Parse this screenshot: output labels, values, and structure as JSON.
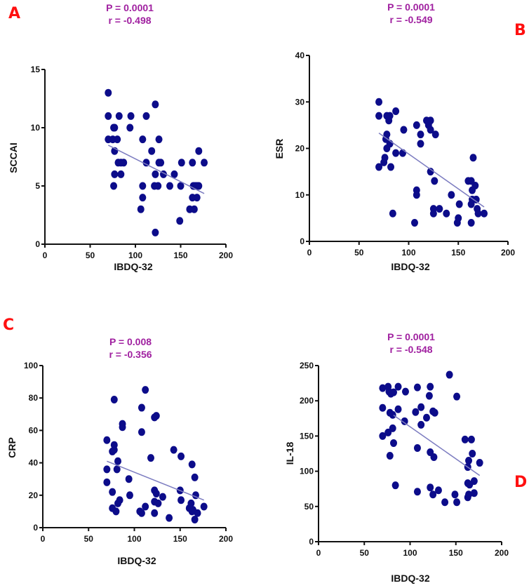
{
  "chart_data": [
    {
      "type": "scatter",
      "panel": "A",
      "p_text": "P = 0.0001",
      "r_text": "r = -0.498",
      "xlabel": "IBDQ-32",
      "ylabel": "SCCAI",
      "xlim": [
        0,
        200
      ],
      "ylim": [
        0,
        15
      ],
      "xticks": [
        0,
        50,
        100,
        150,
        200
      ],
      "yticks": [
        0,
        5,
        10,
        15
      ],
      "trend": [
        [
          70,
          8.5
        ],
        [
          176,
          4.35
        ]
      ],
      "points": [
        [
          70,
          13
        ],
        [
          70,
          11
        ],
        [
          70,
          9
        ],
        [
          76,
          10
        ],
        [
          77,
          10
        ],
        [
          75,
          9
        ],
        [
          80,
          9
        ],
        [
          77,
          8
        ],
        [
          77,
          6
        ],
        [
          76,
          5
        ],
        [
          81,
          7
        ],
        [
          84,
          7
        ],
        [
          87,
          7
        ],
        [
          82,
          11
        ],
        [
          84,
          6
        ],
        [
          95,
          11
        ],
        [
          94,
          10
        ],
        [
          108,
          9
        ],
        [
          108,
          5
        ],
        [
          108,
          4
        ],
        [
          106,
          3
        ],
        [
          112,
          11
        ],
        [
          112,
          7
        ],
        [
          118,
          8
        ],
        [
          122,
          12
        ],
        [
          122,
          6
        ],
        [
          121,
          5
        ],
        [
          125,
          5
        ],
        [
          126,
          9
        ],
        [
          126,
          7
        ],
        [
          128,
          7
        ],
        [
          131,
          6
        ],
        [
          138,
          5
        ],
        [
          143,
          6
        ],
        [
          149,
          2
        ],
        [
          150,
          5
        ],
        [
          151,
          7
        ],
        [
          122,
          1
        ],
        [
          163,
          7
        ],
        [
          164,
          5
        ],
        [
          163,
          4
        ],
        [
          160,
          3
        ],
        [
          165,
          3
        ],
        [
          166,
          5
        ],
        [
          168,
          4
        ],
        [
          168,
          5
        ],
        [
          170,
          5
        ],
        [
          170,
          8
        ],
        [
          176,
          7
        ]
      ]
    },
    {
      "type": "scatter",
      "panel": "B",
      "p_text": "P = 0.0001",
      "r_text": "r = -0.549",
      "xlabel": "IBDQ-32",
      "ylabel": "ESR",
      "xlim": [
        0,
        200
      ],
      "ylim": [
        0,
        40
      ],
      "xticks": [
        0,
        50,
        100,
        150,
        200
      ],
      "yticks": [
        0,
        10,
        20,
        30,
        40
      ],
      "trend": [
        [
          70,
          23.3
        ],
        [
          176,
          7.4
        ]
      ],
      "points": [
        [
          70,
          30
        ],
        [
          70,
          27
        ],
        [
          70,
          16
        ],
        [
          78,
          27
        ],
        [
          80,
          26
        ],
        [
          81,
          27
        ],
        [
          87,
          28
        ],
        [
          78,
          23
        ],
        [
          77,
          22
        ],
        [
          76,
          18
        ],
        [
          75,
          17
        ],
        [
          78,
          20
        ],
        [
          81,
          21
        ],
        [
          82,
          16
        ],
        [
          87,
          19
        ],
        [
          84,
          6
        ],
        [
          95,
          24
        ],
        [
          94,
          19
        ],
        [
          108,
          25
        ],
        [
          108,
          11
        ],
        [
          108,
          10
        ],
        [
          106,
          4
        ],
        [
          112,
          23
        ],
        [
          112,
          21
        ],
        [
          118,
          26
        ],
        [
          120,
          25
        ],
        [
          122,
          26
        ],
        [
          122,
          24
        ],
        [
          127,
          23
        ],
        [
          122,
          15
        ],
        [
          126,
          13
        ],
        [
          125,
          7
        ],
        [
          125,
          6
        ],
        [
          131,
          7
        ],
        [
          138,
          6
        ],
        [
          143,
          10
        ],
        [
          149,
          4
        ],
        [
          150,
          5
        ],
        [
          151,
          8
        ],
        [
          160,
          13
        ],
        [
          163,
          13
        ],
        [
          165,
          18
        ],
        [
          164,
          11
        ],
        [
          167,
          12
        ],
        [
          163,
          8
        ],
        [
          164,
          9
        ],
        [
          168,
          9
        ],
        [
          163,
          4
        ],
        [
          169,
          7
        ],
        [
          170,
          6
        ],
        [
          176,
          6
        ]
      ]
    },
    {
      "type": "scatter",
      "panel": "C",
      "p_text": "P = 0.008",
      "r_text": "r = -0.356",
      "xlabel": "IBDQ-32",
      "ylabel": "CRP",
      "xlim": [
        0,
        200
      ],
      "ylim": [
        0,
        100
      ],
      "xticks": [
        0,
        50,
        100,
        150,
        200
      ],
      "yticks": [
        0,
        20,
        40,
        60,
        80,
        100
      ],
      "trend": [
        [
          70,
          41
        ],
        [
          176,
          17
        ]
      ],
      "points": [
        [
          70,
          54
        ],
        [
          70,
          36
        ],
        [
          70,
          28
        ],
        [
          76,
          47
        ],
        [
          78,
          48
        ],
        [
          78,
          51
        ],
        [
          78,
          79
        ],
        [
          76,
          22
        ],
        [
          76,
          12
        ],
        [
          80,
          10
        ],
        [
          82,
          41
        ],
        [
          81,
          36
        ],
        [
          82,
          15
        ],
        [
          84,
          17
        ],
        [
          87,
          64
        ],
        [
          87,
          62
        ],
        [
          94,
          30
        ],
        [
          95,
          20
        ],
        [
          106,
          10
        ],
        [
          108,
          9
        ],
        [
          108,
          59
        ],
        [
          108,
          74
        ],
        [
          112,
          85
        ],
        [
          112,
          13
        ],
        [
          118,
          43
        ],
        [
          122,
          68
        ],
        [
          124,
          69
        ],
        [
          122,
          23
        ],
        [
          124,
          21
        ],
        [
          122,
          16
        ],
        [
          122,
          9
        ],
        [
          126,
          15
        ],
        [
          131,
          19
        ],
        [
          138,
          6
        ],
        [
          143,
          48
        ],
        [
          150,
          23
        ],
        [
          151,
          17
        ],
        [
          151,
          44
        ],
        [
          160,
          12
        ],
        [
          162,
          15
        ],
        [
          163,
          39
        ],
        [
          164,
          11
        ],
        [
          163,
          10
        ],
        [
          166,
          5
        ],
        [
          166,
          31
        ],
        [
          167,
          20
        ],
        [
          169,
          9
        ],
        [
          176,
          13
        ]
      ]
    },
    {
      "type": "scatter",
      "panel": "D",
      "p_text": "P = 0.0001",
      "r_text": "r = -0.548",
      "xlabel": "IBDQ-32",
      "ylabel": "IL-18",
      "xlim": [
        0,
        200
      ],
      "ylim": [
        0,
        250
      ],
      "xticks": [
        0,
        50,
        100,
        150,
        200
      ],
      "yticks": [
        0,
        50,
        100,
        150,
        200,
        250
      ],
      "trend": [
        [
          82,
          179.5
        ],
        [
          176,
          94
        ]
      ],
      "points": [
        [
          70,
          218
        ],
        [
          70,
          190
        ],
        [
          70,
          150
        ],
        [
          76,
          220
        ],
        [
          77,
          213
        ],
        [
          79,
          210
        ],
        [
          82,
          212
        ],
        [
          87,
          220
        ],
        [
          76,
          155
        ],
        [
          78,
          183
        ],
        [
          81,
          180
        ],
        [
          81,
          161
        ],
        [
          82,
          140
        ],
        [
          78,
          122
        ],
        [
          84,
          80
        ],
        [
          87,
          188
        ],
        [
          94,
          171
        ],
        [
          95,
          213
        ],
        [
          106,
          184
        ],
        [
          108,
          219
        ],
        [
          112,
          191
        ],
        [
          112,
          166
        ],
        [
          118,
          176
        ],
        [
          121,
          207
        ],
        [
          122,
          220
        ],
        [
          125,
          185
        ],
        [
          127,
          183
        ],
        [
          122,
          127
        ],
        [
          126,
          120
        ],
        [
          108,
          133
        ],
        [
          108,
          71
        ],
        [
          122,
          77
        ],
        [
          125,
          67
        ],
        [
          131,
          73
        ],
        [
          138,
          56
        ],
        [
          143,
          237
        ],
        [
          149,
          67
        ],
        [
          151,
          56
        ],
        [
          151,
          206
        ],
        [
          160,
          145
        ],
        [
          163,
          106
        ],
        [
          164,
          115
        ],
        [
          167,
          145
        ],
        [
          168,
          125
        ],
        [
          163,
          83
        ],
        [
          165,
          81
        ],
        [
          170,
          86
        ],
        [
          163,
          63
        ],
        [
          164,
          67
        ],
        [
          170,
          69
        ],
        [
          176,
          112
        ]
      ]
    }
  ],
  "colors": {
    "point": "#0c0c8a",
    "trend": "#7c7cc0",
    "stat": "#a020a0",
    "panel_letter": "#ff1010",
    "axis": "#111111"
  }
}
